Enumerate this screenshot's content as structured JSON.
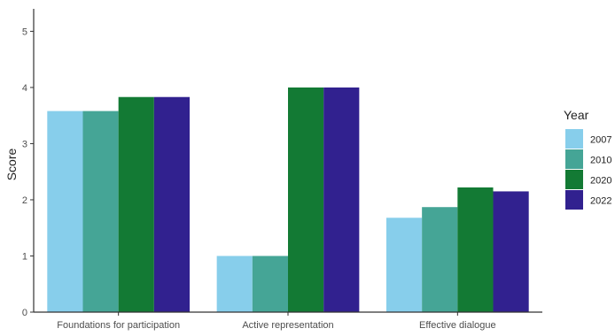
{
  "chart_data": {
    "type": "bar",
    "title": "",
    "xlabel": "",
    "ylabel": "Score",
    "ylim": [
      0,
      5.4
    ],
    "yticks": [
      0,
      1,
      2,
      3,
      4,
      5
    ],
    "categories": [
      "Foundations for participation",
      "Active representation",
      "Effective dialogue"
    ],
    "legend_title": "Year",
    "legend_position": "right",
    "grid": false,
    "series": [
      {
        "name": "2007",
        "color": "#87ceeb",
        "values": [
          3.58,
          1.0,
          1.68
        ]
      },
      {
        "name": "2010",
        "color": "#45a596",
        "values": [
          3.58,
          1.0,
          1.87
        ]
      },
      {
        "name": "2020",
        "color": "#137a34",
        "values": [
          3.83,
          4.0,
          2.22
        ]
      },
      {
        "name": "2022",
        "color": "#31218f",
        "values": [
          3.83,
          4.0,
          2.15
        ]
      }
    ]
  }
}
